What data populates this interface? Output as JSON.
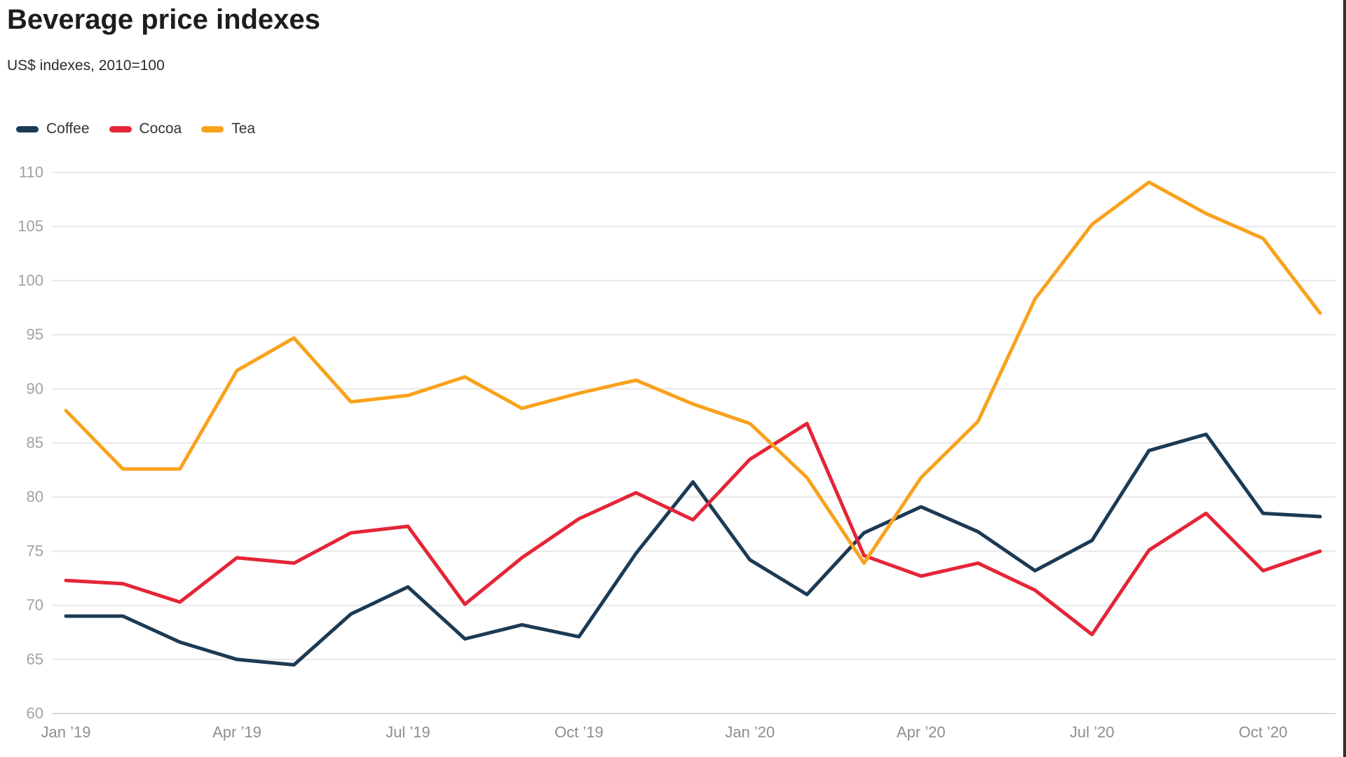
{
  "chart_data": {
    "type": "line",
    "title": "Beverage price indexes",
    "subtitle": "US$ indexes, 2010=100",
    "categories": [
      "Jan ’19",
      "Feb ’19",
      "Mar ’19",
      "Apr ’19",
      "May ’19",
      "Jun ’19",
      "Jul ’19",
      "Aug ’19",
      "Sep ’19",
      "Oct ’19",
      "Nov ’19",
      "Dec ’19",
      "Jan ’20",
      "Feb ’20",
      "Mar ’20",
      "Apr ’20",
      "May ’20",
      "Jun ’20",
      "Jul ’20",
      "Aug ’20",
      "Sep ’20",
      "Oct ’20",
      "Nov ’20"
    ],
    "x_tick_indices": [
      0,
      3,
      6,
      9,
      12,
      15,
      18,
      21
    ],
    "x_tick_labels": [
      "Jan ’19",
      "Apr ’19",
      "Jul ’19",
      "Oct ’19",
      "Jan ’20",
      "Apr ’20",
      "Jul ’20",
      "Oct ’20"
    ],
    "series": [
      {
        "name": "Coffee",
        "color": "#1c3a54",
        "values": [
          69.0,
          69.0,
          66.6,
          65.0,
          64.5,
          69.2,
          71.7,
          66.9,
          68.2,
          67.1,
          74.8,
          81.4,
          74.2,
          71.0,
          76.7,
          79.1,
          76.8,
          73.2,
          76.0,
          84.3,
          85.8,
          78.5,
          78.2
        ]
      },
      {
        "name": "Cocoa",
        "color": "#e52537",
        "values": [
          72.3,
          72.0,
          70.3,
          74.4,
          73.9,
          76.7,
          77.3,
          70.1,
          74.4,
          78.0,
          80.4,
          77.9,
          83.5,
          86.8,
          74.6,
          72.7,
          73.9,
          71.4,
          67.3,
          75.1,
          78.5,
          73.2,
          75.0
        ]
      },
      {
        "name": "Tea",
        "color": "#f9a21c",
        "values": [
          88.0,
          82.6,
          82.6,
          91.7,
          94.7,
          88.8,
          89.4,
          91.1,
          88.2,
          89.6,
          90.8,
          88.6,
          86.8,
          81.8,
          73.9,
          81.8,
          87.0,
          98.3,
          105.2,
          109.1,
          106.2,
          103.9,
          97.0
        ]
      }
    ],
    "ylim": [
      60,
      110
    ],
    "y_ticks": [
      110,
      105,
      100,
      95,
      90,
      85,
      80,
      75,
      70,
      65,
      60
    ],
    "xlabel": "",
    "ylabel": "",
    "grid": true,
    "legend_position": "top-left",
    "colors": {
      "grid": "#e7e7e7",
      "baseline": "#d8d8d8",
      "y_tick_text": "#a2a2a2",
      "x_tick_text": "#8e8e8e"
    }
  }
}
